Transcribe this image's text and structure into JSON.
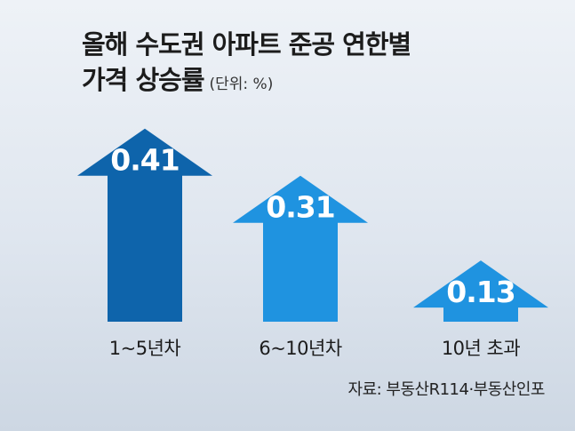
{
  "chart_data": {
    "type": "bar",
    "title_line1": "올해 수도권 아파트 준공 연한별",
    "title_line2": "가격 상승률",
    "unit": "(단위: %)",
    "categories": [
      "1~5년차",
      "6~10년차",
      "10년 초과"
    ],
    "values": [
      0.41,
      0.31,
      0.13
    ],
    "value_labels": [
      "0.41",
      "0.31",
      "0.13"
    ],
    "colors": [
      "#0e64ab",
      "#1f93e0",
      "#1f93e0"
    ],
    "source": "자료: 부동산R114·부동산인포"
  }
}
